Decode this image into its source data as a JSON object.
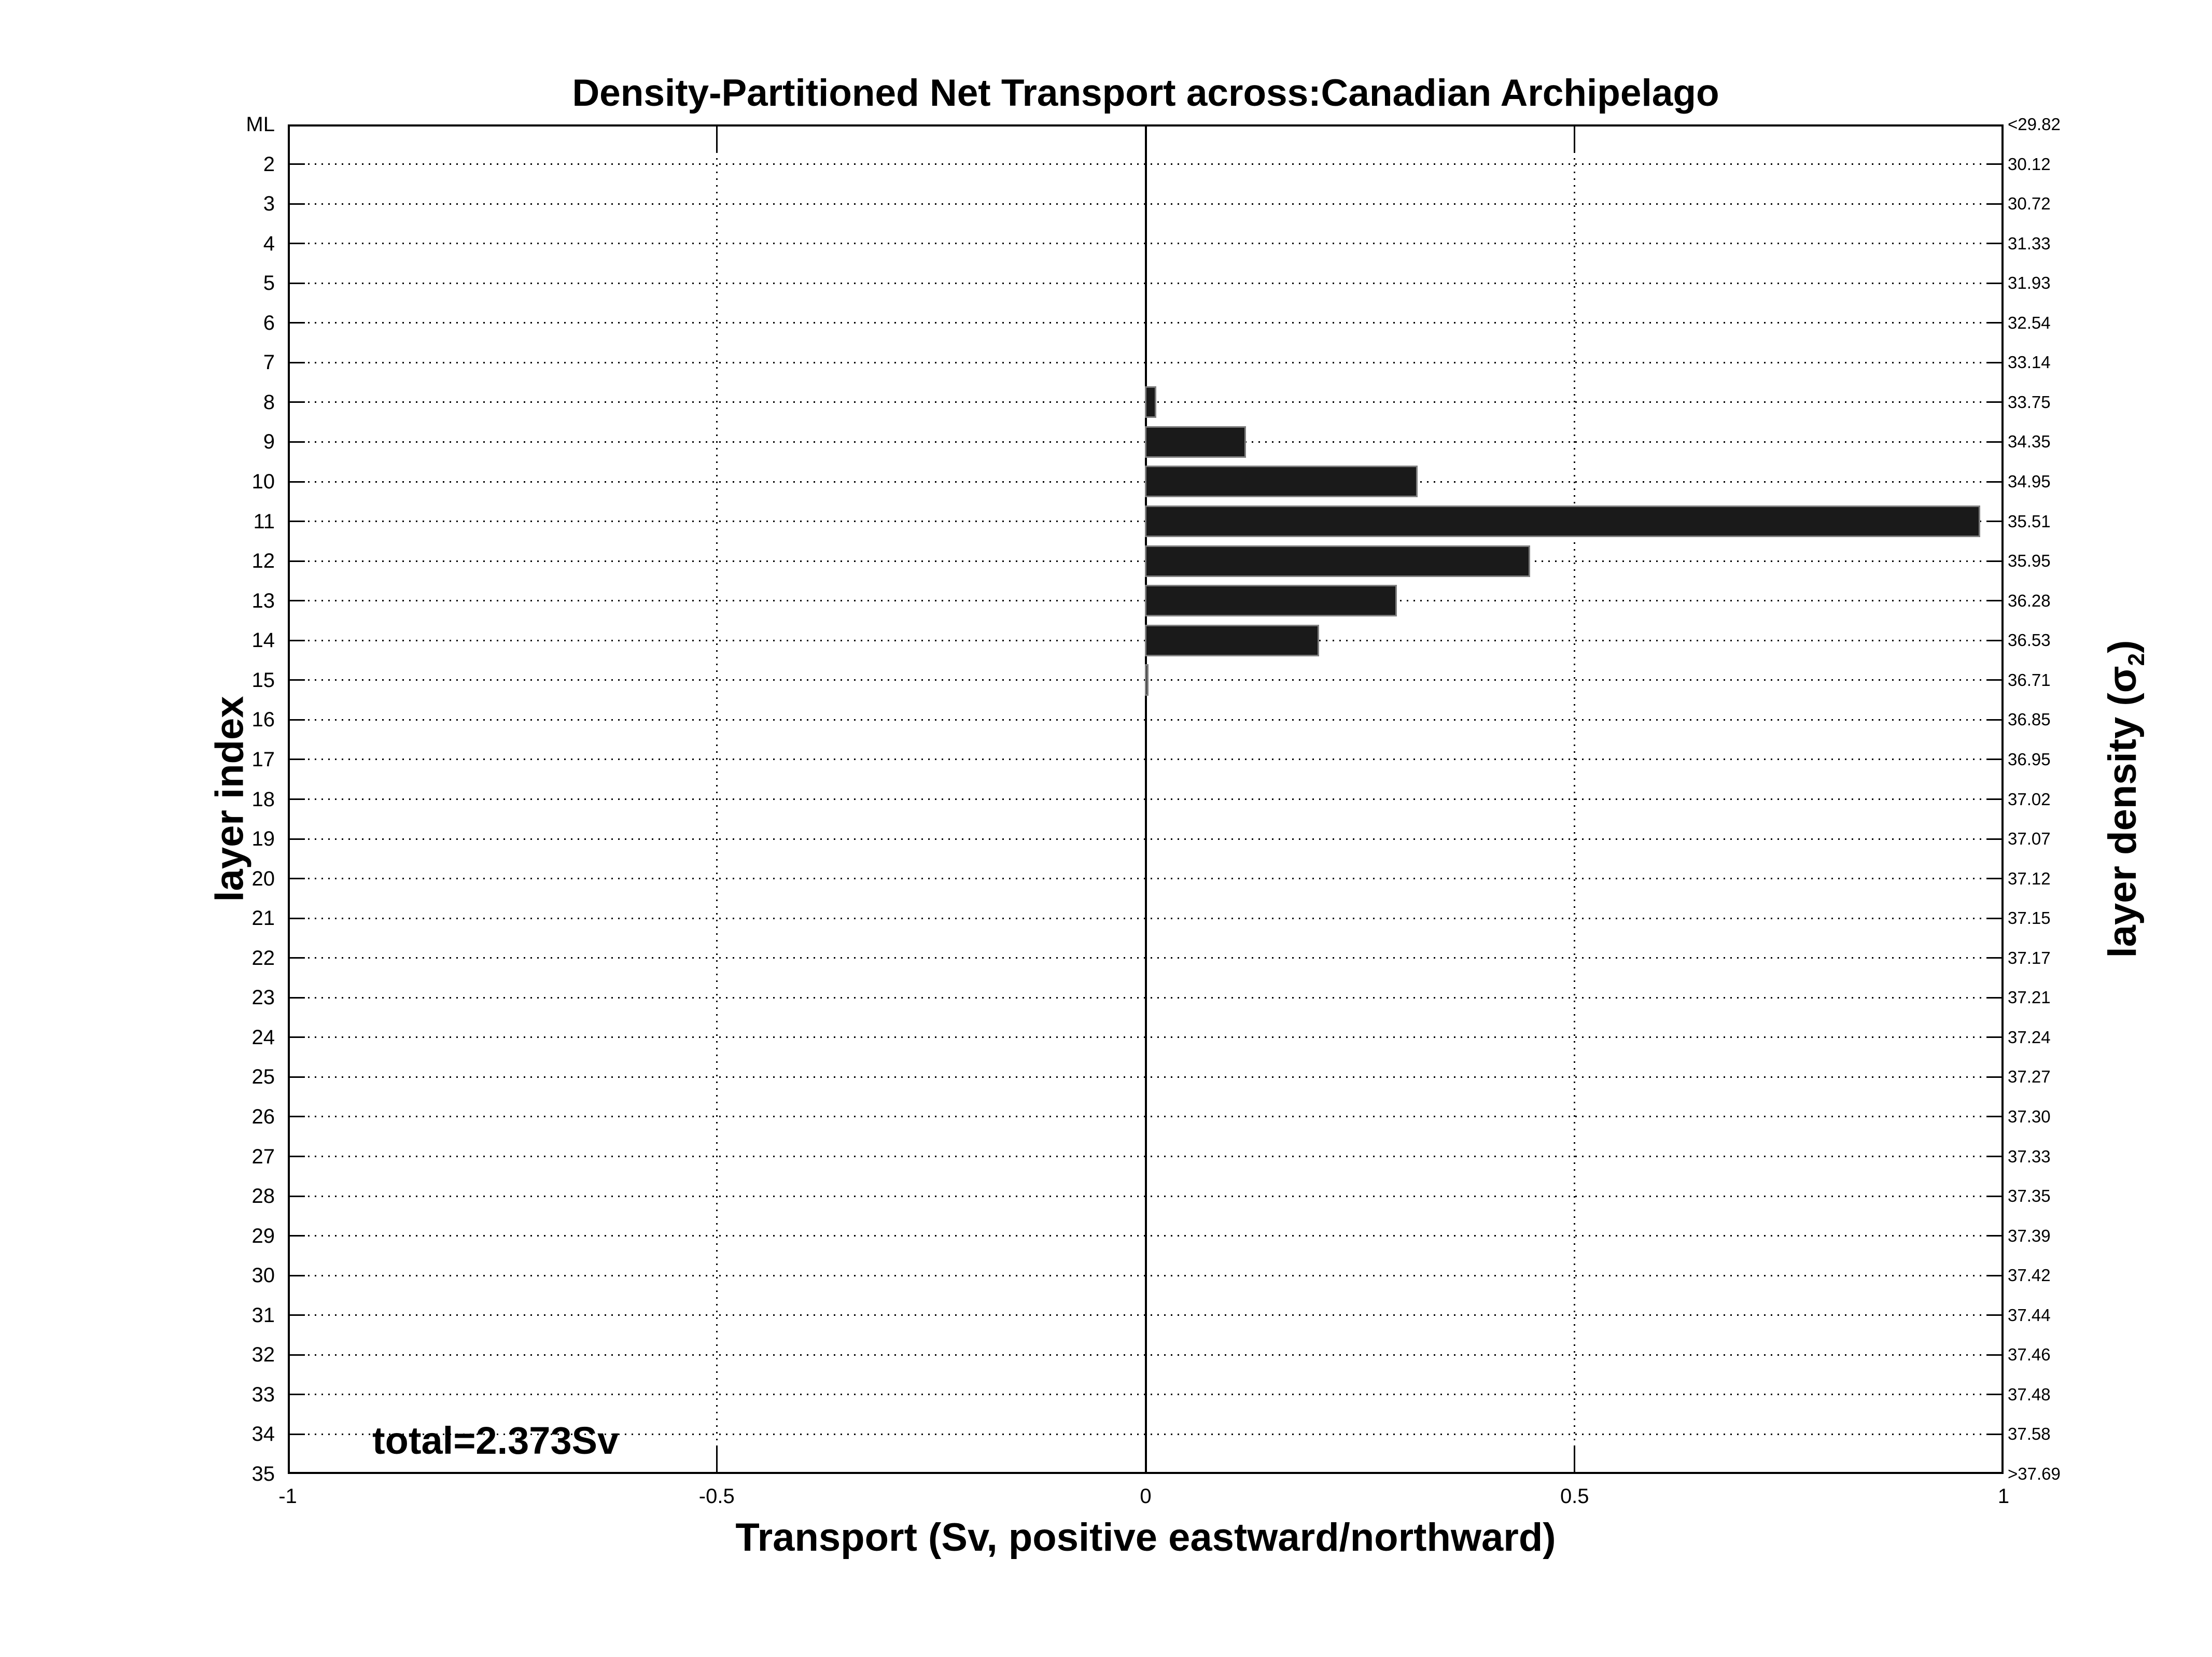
{
  "title": "Density-Partitioned Net Transport across:Canadian Archipelago",
  "axis_labels": {
    "x": "Transport (Sv, positive eastward/northward)",
    "y_left": "layer index",
    "y_right_pre": "layer density (σ",
    "y_right_sub": "2",
    "y_right_post": ")"
  },
  "annotation": "total=2.373Sv",
  "chart_data": {
    "type": "bar",
    "orientation": "horizontal",
    "title": "Density-Partitioned Net Transport across:Canadian Archipelago",
    "xlabel": "Transport (Sv, positive eastward/northward)",
    "ylabel_left": "layer index",
    "ylabel_right": "layer density (σ2)",
    "total_label": "total=2.373Sv",
    "total_sv": 2.373,
    "xlim": [
      -1,
      1
    ],
    "xticks": [
      {
        "label": "-1",
        "value": -1
      },
      {
        "label": "-0.5",
        "value": -0.5
      },
      {
        "label": "0",
        "value": 0
      },
      {
        "label": "0.5",
        "value": 0.5
      },
      {
        "label": "1",
        "value": 1
      }
    ],
    "grid": "dotted",
    "legend": "none",
    "bar_fill": "#1a1a1a",
    "bar_edge": "#7f7f7f",
    "categories": [
      "ML",
      "2",
      "3",
      "4",
      "5",
      "6",
      "7",
      "8",
      "9",
      "10",
      "11",
      "12",
      "13",
      "14",
      "15",
      "16",
      "17",
      "18",
      "19",
      "20",
      "21",
      "22",
      "23",
      "24",
      "25",
      "26",
      "27",
      "28",
      "29",
      "30",
      "31",
      "32",
      "33",
      "34",
      "35"
    ],
    "density_labels": [
      "<29.82",
      "30.12",
      "30.72",
      "31.33",
      "31.93",
      "32.54",
      "33.14",
      "33.75",
      "34.35",
      "34.95",
      "35.51",
      "35.95",
      "36.28",
      "36.53",
      "36.71",
      "36.85",
      "36.95",
      "37.02",
      "37.07",
      "37.12",
      "37.15",
      "37.17",
      "37.21",
      "37.24",
      "37.27",
      "37.30",
      "37.33",
      "37.35",
      "37.39",
      "37.42",
      "37.44",
      "37.46",
      "37.48",
      "37.58",
      ">37.69"
    ],
    "values": [
      0,
      0,
      0,
      0,
      0,
      0,
      0,
      0.013,
      0.118,
      0.318,
      0.974,
      0.449,
      0.294,
      0.203,
      0.004,
      0,
      0,
      0,
      0,
      0,
      0,
      0,
      0,
      0,
      0,
      0,
      0,
      0,
      0,
      0,
      0,
      0,
      0,
      0,
      0
    ]
  }
}
